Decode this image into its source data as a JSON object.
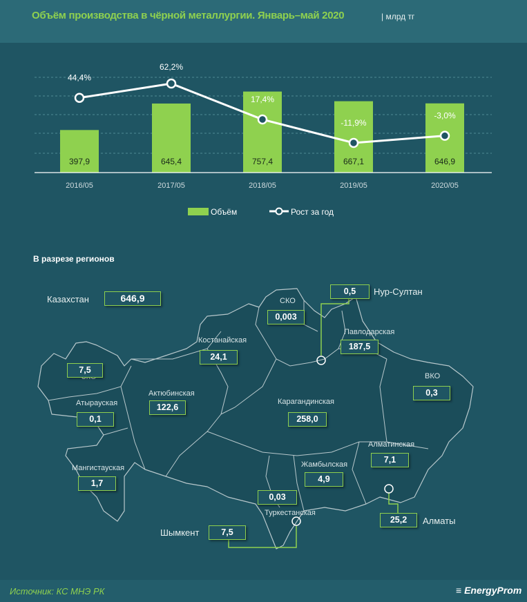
{
  "header": {
    "title": "Объём производства в чёрной металлургии. Январь–май 2020",
    "unit": "| млрд тг"
  },
  "colors": {
    "bar": "#8fd14f",
    "line": "#ffffff",
    "background": "#1f5563",
    "accent": "#8fd14f"
  },
  "chart_data": {
    "type": "bar+line",
    "categories": [
      "2016/05",
      "2017/05",
      "2018/05",
      "2019/05",
      "2020/05"
    ],
    "series": [
      {
        "name": "Объём",
        "type": "bar",
        "values": [
          397.9,
          645.4,
          757.4,
          667.1,
          646.9
        ],
        "labels": [
          "397,9",
          "645,4",
          "757,4",
          "667,1",
          "646,9"
        ]
      },
      {
        "name": "Рост за год",
        "type": "line",
        "values": [
          44.4,
          62.2,
          17.4,
          -11.9,
          -3.0
        ],
        "labels": [
          "44,4%",
          "62,2%",
          "17,4%",
          "-11,9%",
          "-3,0%"
        ]
      }
    ],
    "legend": "bottom",
    "grid": true
  },
  "regions_title": "В разрезе регионов",
  "regions": [
    {
      "name": "Казахстан",
      "value": "646,9"
    },
    {
      "name": "Нур-Султан",
      "value": "0,5"
    },
    {
      "name": "СКО",
      "value": "0,003"
    },
    {
      "name": "Павлодарская",
      "value": "187,5"
    },
    {
      "name": "Костанайская",
      "value": "24,1"
    },
    {
      "name": "ЗКО",
      "value": "7,5"
    },
    {
      "name": "ВКО",
      "value": "0,3"
    },
    {
      "name": "Актюбинская",
      "value": "122,6"
    },
    {
      "name": "Карагандинская",
      "value": "258,0"
    },
    {
      "name": "Атырауская",
      "value": "0,1"
    },
    {
      "name": "Алматинская",
      "value": "7,1"
    },
    {
      "name": "Жамбылская",
      "value": "4,9"
    },
    {
      "name": "Мангистауская",
      "value": "1,7"
    },
    {
      "name": "Туркестанская",
      "value": "0,03"
    },
    {
      "name": "Алматы",
      "value": "25,2"
    },
    {
      "name": "Шымкент",
      "value": "7,5"
    }
  ],
  "footer": {
    "source": "Источник: КС МНЭ РК",
    "logo": "EnergyProm"
  }
}
